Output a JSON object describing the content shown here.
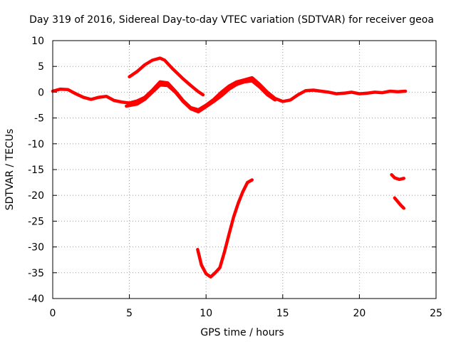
{
  "chart_data": {
    "type": "line",
    "title": "Day 319 of 2016, Sidereal Day-to-day VTEC variation (SDTVAR) for receiver geoa",
    "xlabel": "GPS time / hours",
    "ylabel": "SDTVAR / TECUs",
    "xlim": [
      0,
      25
    ],
    "ylim": [
      -40,
      10
    ],
    "xticks": [
      0,
      5,
      10,
      15,
      20,
      25
    ],
    "yticks": [
      10,
      5,
      0,
      -5,
      -10,
      -15,
      -20,
      -25,
      -30,
      -35,
      -40
    ],
    "grid": true,
    "color": "#ff0000",
    "series": [
      {
        "name": "trace-main-a",
        "x": [
          0.0,
          0.5,
          1.0,
          1.5,
          2.0,
          2.5,
          3.0,
          3.5,
          4.0,
          4.5,
          5.0,
          5.5,
          6.0,
          6.5,
          7.0,
          7.5,
          8.0,
          8.5,
          9.0,
          9.5,
          10.0,
          10.5,
          11.0,
          11.5,
          12.0,
          12.5,
          13.0,
          13.5,
          14.0,
          14.5,
          15.0,
          15.5,
          16.0,
          16.5,
          17.0,
          17.5,
          18.0,
          18.5,
          19.0,
          19.5,
          20.0,
          20.5,
          21.0,
          21.5,
          22.0,
          22.5,
          23.0
        ],
        "y": [
          0.2,
          0.6,
          0.5,
          -0.3,
          -1.0,
          -1.4,
          -1.0,
          -0.8,
          -1.6,
          -1.9,
          -2.1,
          -1.7,
          -1.0,
          0.4,
          2.0,
          1.8,
          0.2,
          -1.6,
          -3.0,
          -3.4,
          -2.5,
          -1.4,
          0.0,
          1.2,
          2.0,
          2.4,
          2.8,
          1.5,
          0.0,
          -1.2,
          -1.8,
          -1.5,
          -0.5,
          0.3,
          0.4,
          0.2,
          0.0,
          -0.3,
          -0.2,
          0.0,
          -0.3,
          -0.2,
          0.0,
          -0.1,
          0.2,
          0.1,
          0.2
        ]
      },
      {
        "name": "trace-main-b",
        "x": [
          4.8,
          5.5,
          6.0,
          6.5,
          7.0,
          7.5,
          8.0,
          8.5,
          9.0,
          9.5,
          10.0,
          10.5,
          11.0,
          11.5,
          12.0,
          12.5,
          13.0,
          13.5,
          14.0,
          14.5
        ],
        "y": [
          -2.7,
          -2.3,
          -1.4,
          0.0,
          1.4,
          1.3,
          0.0,
          -1.8,
          -3.2,
          -3.8,
          -2.8,
          -1.8,
          -0.7,
          0.6,
          1.5,
          2.0,
          2.2,
          1.0,
          -0.5,
          -1.5
        ]
      },
      {
        "name": "trace-upper-arc",
        "x": [
          5.0,
          5.5,
          6.0,
          6.5,
          7.0,
          7.3,
          7.8,
          8.5,
          9.0,
          9.5,
          9.8
        ],
        "y": [
          3.0,
          4.0,
          5.3,
          6.2,
          6.6,
          6.2,
          4.6,
          2.6,
          1.3,
          0.1,
          -0.5
        ]
      },
      {
        "name": "trace-v-dip",
        "x": [
          9.45,
          9.7,
          10.0,
          10.3,
          10.6,
          10.9,
          11.2,
          11.5,
          11.8,
          12.1,
          12.4,
          12.7,
          13.0
        ],
        "y": [
          -30.5,
          -33.5,
          -35.2,
          -35.8,
          -35.0,
          -34.0,
          -31.0,
          -27.5,
          -24.2,
          -21.5,
          -19.3,
          -17.5,
          -17.0
        ]
      },
      {
        "name": "trace-late-upper",
        "x": [
          22.1,
          22.3,
          22.6,
          22.9
        ],
        "y": [
          -16.0,
          -16.6,
          -16.9,
          -16.7
        ]
      },
      {
        "name": "trace-late-lower",
        "x": [
          22.3,
          22.5,
          22.7,
          22.9
        ],
        "y": [
          -20.5,
          -21.2,
          -21.9,
          -22.5
        ]
      }
    ]
  }
}
